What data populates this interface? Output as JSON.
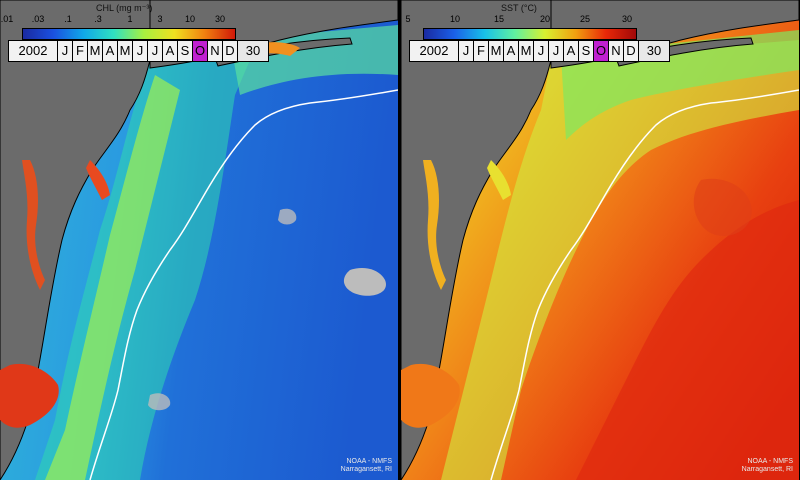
{
  "panels": [
    {
      "id": "chl",
      "title": "CHL (mg m⁻³)",
      "ticks": [
        ".01",
        ".03",
        ".1",
        ".3",
        "1",
        "3",
        "10",
        "30"
      ],
      "colors": [
        "#1a2aa0",
        "#1a50e0",
        "#10a8e8",
        "#30e0c0",
        "#a8f040",
        "#f0e020",
        "#f08010",
        "#d01808"
      ],
      "year": "2002",
      "months": [
        "J",
        "F",
        "M",
        "A",
        "M",
        "J",
        "J",
        "A",
        "S",
        "O",
        "N",
        "D"
      ],
      "active_month": "O",
      "day": "30",
      "credit_line1": "NOAA - NMFS",
      "credit_line2": "Narragansett, RI"
    },
    {
      "id": "sst",
      "title": "SST (°C)",
      "ticks": [
        "5",
        "10",
        "15",
        "20",
        "25",
        "30"
      ],
      "colors": [
        "#1a2aa0",
        "#1a60e8",
        "#18c0e8",
        "#60f0a0",
        "#d8f030",
        "#f0a010",
        "#e82808",
        "#a00808"
      ],
      "year": "2002",
      "months": [
        "J",
        "F",
        "M",
        "A",
        "M",
        "J",
        "J",
        "A",
        "S",
        "O",
        "N",
        "D"
      ],
      "active_month": "O",
      "day": "30",
      "credit_line1": "NOAA - NMFS",
      "credit_line2": "Narragansett, RI"
    }
  ],
  "map_colors": {
    "land": "#6b6b6b",
    "shelf_break_line": "#ffffff",
    "coast_outline": "#000000",
    "cloud": "#bcbcbc"
  }
}
